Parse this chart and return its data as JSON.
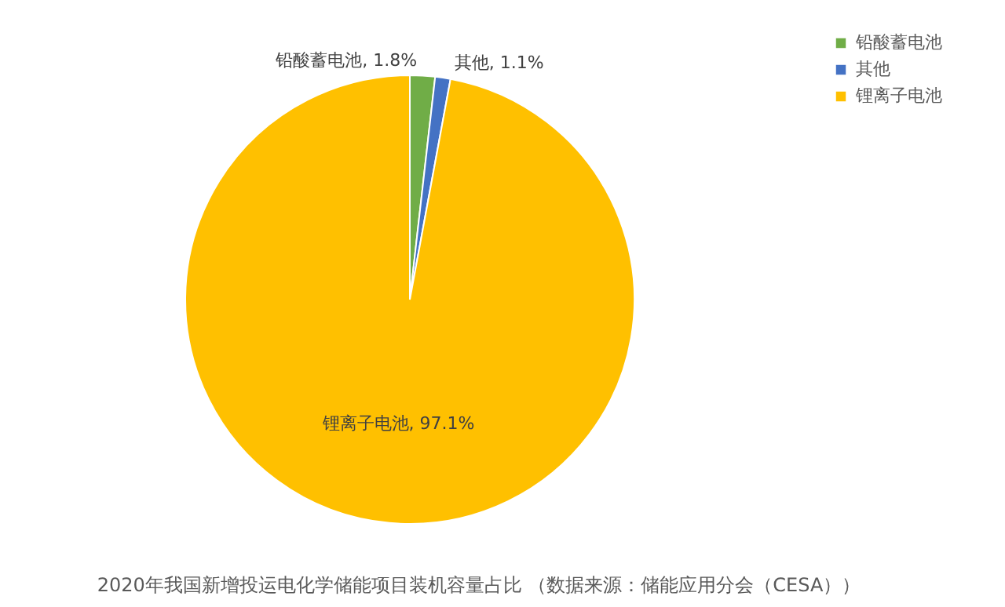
{
  "chart_data": {
    "type": "pie",
    "title": "2020年我国新增投运电化学储能项目装机容量占比 （数据来源：储能应用分会（CESA））",
    "categories": [
      "铅酸蓄电池",
      "其他",
      "锂离子电池"
    ],
    "values": [
      1.8,
      1.1,
      97.1
    ],
    "colors": [
      "#70ad47",
      "#4472c4",
      "#ffc000"
    ],
    "value_labels": [
      "铅酸蓄电池, 1.8%",
      "其他, 1.1%",
      "锂离子电池, 97.1%"
    ],
    "legend": "right"
  }
}
